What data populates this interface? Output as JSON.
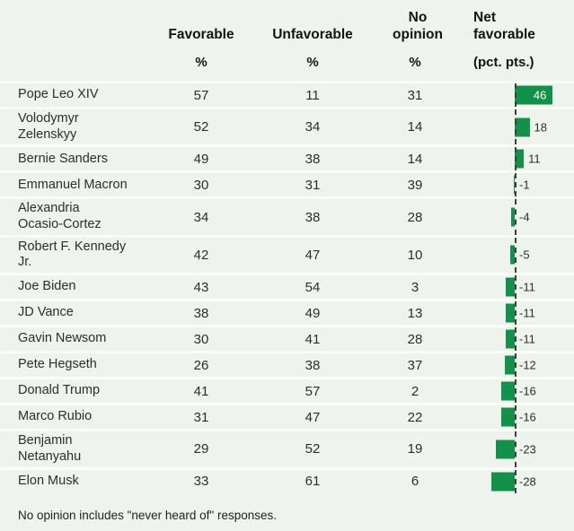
{
  "table": {
    "columns": [
      {
        "label": "Favorable",
        "sub": "%"
      },
      {
        "label": "Unfavorable",
        "sub": "%"
      },
      {
        "label": "No opinion",
        "sub": "%"
      },
      {
        "label": "Net favorable",
        "sub": "(pct. pts.)"
      }
    ],
    "rows": [
      {
        "name": "Pope Leo XIV",
        "favorable": 57,
        "unfavorable": 11,
        "no_opinion": 31,
        "net": 46
      },
      {
        "name": "Volodymyr\nZelenskyy",
        "favorable": 52,
        "unfavorable": 34,
        "no_opinion": 14,
        "net": 18
      },
      {
        "name": "Bernie Sanders",
        "favorable": 49,
        "unfavorable": 38,
        "no_opinion": 14,
        "net": 11
      },
      {
        "name": "Emmanuel Macron",
        "favorable": 30,
        "unfavorable": 31,
        "no_opinion": 39,
        "net": -1
      },
      {
        "name": "Alexandria\nOcasio-Cortez",
        "favorable": 34,
        "unfavorable": 38,
        "no_opinion": 28,
        "net": -4
      },
      {
        "name": "Robert F. Kennedy\nJr.",
        "favorable": 42,
        "unfavorable": 47,
        "no_opinion": 10,
        "net": -5
      },
      {
        "name": "Joe Biden",
        "favorable": 43,
        "unfavorable": 54,
        "no_opinion": 3,
        "net": -11
      },
      {
        "name": "JD Vance",
        "favorable": 38,
        "unfavorable": 49,
        "no_opinion": 13,
        "net": -11
      },
      {
        "name": "Gavin Newsom",
        "favorable": 30,
        "unfavorable": 41,
        "no_opinion": 28,
        "net": -11
      },
      {
        "name": "Pete Hegseth",
        "favorable": 26,
        "unfavorable": 38,
        "no_opinion": 37,
        "net": -12
      },
      {
        "name": "Donald Trump",
        "favorable": 41,
        "unfavorable": 57,
        "no_opinion": 2,
        "net": -16
      },
      {
        "name": "Marco Rubio",
        "favorable": 31,
        "unfavorable": 47,
        "no_opinion": 22,
        "net": -16
      },
      {
        "name": "Benjamin\nNetanyahu",
        "favorable": 29,
        "unfavorable": 52,
        "no_opinion": 19,
        "net": -23
      },
      {
        "name": "Elon Musk",
        "favorable": 33,
        "unfavorable": 61,
        "no_opinion": 6,
        "net": -28
      }
    ],
    "footnote": "No opinion includes \"never heard of\" responses."
  },
  "colors": {
    "background": "#eef3ee",
    "separator": "#fafcf8",
    "bar": "#12914a",
    "baseline": "#3f3f3f",
    "text": "#2d2d2d",
    "header_text": "#131313",
    "bar_label_inside": "#ffffff"
  },
  "chart_data": {
    "type": "bar",
    "orientation": "horizontal",
    "categories": [
      "Pope Leo XIV",
      "Volodymyr Zelenskyy",
      "Bernie Sanders",
      "Emmanuel Macron",
      "Alexandria Ocasio-Cortez",
      "Robert F. Kennedy Jr.",
      "Joe Biden",
      "JD Vance",
      "Gavin Newsom",
      "Pete Hegseth",
      "Donald Trump",
      "Marco Rubio",
      "Benjamin Netanyahu",
      "Elon Musk"
    ],
    "series": [
      {
        "name": "Favorable %",
        "values": [
          57,
          52,
          49,
          30,
          34,
          42,
          43,
          38,
          30,
          26,
          41,
          31,
          29,
          33
        ]
      },
      {
        "name": "Unfavorable %",
        "values": [
          11,
          34,
          38,
          31,
          38,
          47,
          54,
          49,
          38,
          38,
          57,
          47,
          52,
          61
        ]
      },
      {
        "name": "No opinion %",
        "values": [
          31,
          14,
          14,
          39,
          28,
          10,
          3,
          13,
          28,
          37,
          2,
          22,
          19,
          6
        ]
      },
      {
        "name": "Net favorable (pct. pts.)",
        "values": [
          46,
          18,
          11,
          -1,
          -4,
          -5,
          -11,
          -11,
          -11,
          -12,
          -16,
          -16,
          -23,
          -28
        ]
      }
    ],
    "bar_series_plotted": "Net favorable (pct. pts.)",
    "baseline_value": 0,
    "approx_value_range": [
      -30,
      50
    ],
    "bar_color": "#12914a",
    "grid": false,
    "legend_position": "none",
    "annotations": "Only the Net favorable column is drawn as bars; the 46 bar label is white inside the bar, all other labels sit beside the dashed zero baseline.",
    "footnote": "No opinion includes \"never heard of\" responses."
  }
}
